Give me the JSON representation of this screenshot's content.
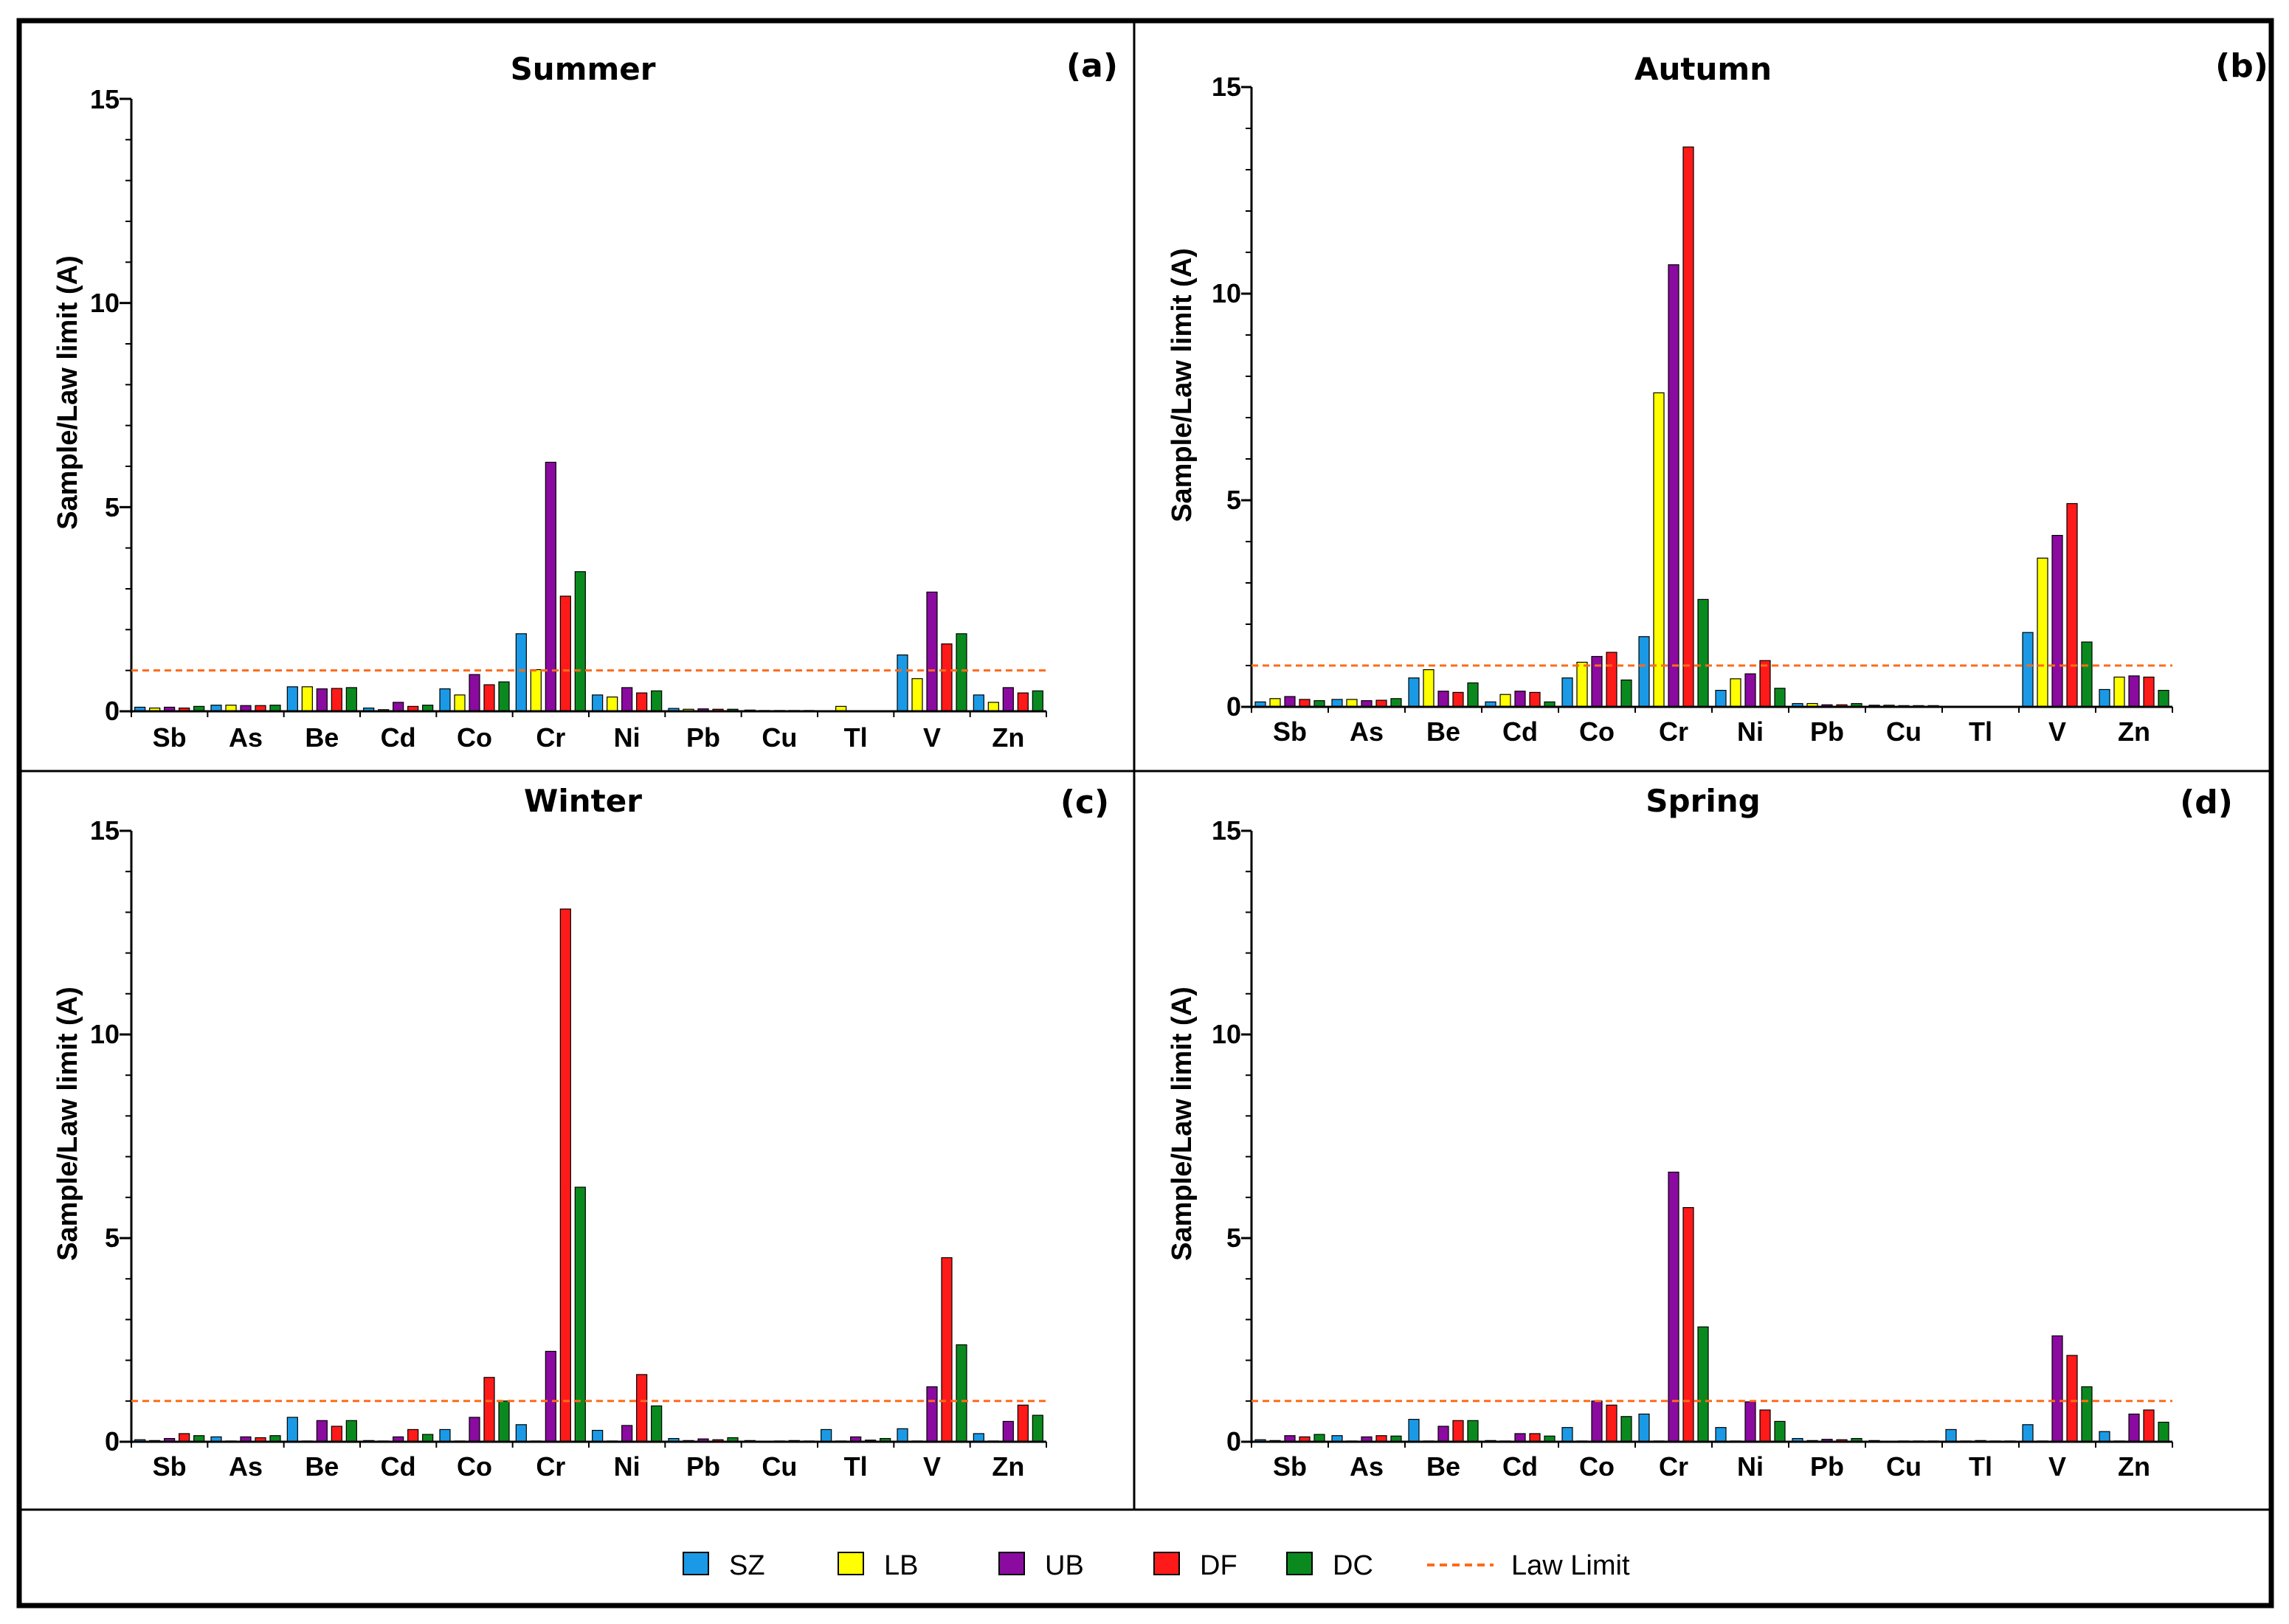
{
  "chart_data": [
    {
      "type": "bar",
      "panel": "(a)",
      "title": "Summer",
      "ylabel": "Sample/Law limit (A)",
      "ylim": [
        0,
        15
      ],
      "yticks": [
        "0",
        "5",
        "10",
        "15"
      ],
      "categories": [
        "Sb",
        "As",
        "Be",
        "Cd",
        "Co",
        "Cr",
        "Ni",
        "Pb",
        "Cu",
        "Tl",
        "V",
        "Zn"
      ],
      "law_limit": 1,
      "series": [
        {
          "name": "SZ",
          "values": [
            0.1,
            0.15,
            0.6,
            0.08,
            0.55,
            1.9,
            0.4,
            0.07,
            0.03,
            0,
            1.38,
            0.4
          ]
        },
        {
          "name": "LB",
          "values": [
            0.08,
            0.15,
            0.6,
            0.04,
            0.4,
            1.02,
            0.35,
            0.05,
            0.02,
            0.12,
            0.8,
            0.22
          ]
        },
        {
          "name": "UB",
          "values": [
            0.1,
            0.14,
            0.55,
            0.22,
            0.9,
            6.1,
            0.58,
            0.06,
            0.02,
            0,
            2.92,
            0.58
          ]
        },
        {
          "name": "DF",
          "values": [
            0.08,
            0.14,
            0.56,
            0.12,
            0.65,
            2.82,
            0.45,
            0.05,
            0.02,
            0,
            1.65,
            0.45
          ]
        },
        {
          "name": "DC",
          "values": [
            0.12,
            0.15,
            0.58,
            0.15,
            0.72,
            3.42,
            0.5,
            0.05,
            0.02,
            0,
            1.9,
            0.5
          ]
        }
      ]
    },
    {
      "type": "bar",
      "panel": "(b)",
      "title": "Autumn",
      "ylabel": "Sample/Law limit (A)",
      "ylim": [
        0,
        15
      ],
      "yticks": [
        "0",
        "5",
        "10",
        "15"
      ],
      "categories": [
        "Sb",
        "As",
        "Be",
        "Cd",
        "Co",
        "Cr",
        "Ni",
        "Pb",
        "Cu",
        "Tl",
        "V",
        "Zn"
      ],
      "law_limit": 1,
      "series": [
        {
          "name": "SZ",
          "values": [
            0.12,
            0.18,
            0.7,
            0.12,
            0.7,
            1.7,
            0.4,
            0.08,
            0.04,
            0,
            1.8,
            0.42
          ]
        },
        {
          "name": "LB",
          "values": [
            0.2,
            0.18,
            0.9,
            0.3,
            1.08,
            7.6,
            0.68,
            0.08,
            0.04,
            0,
            3.6,
            0.72
          ]
        },
        {
          "name": "UB",
          "values": [
            0.25,
            0.15,
            0.38,
            0.38,
            1.22,
            10.7,
            0.8,
            0.05,
            0.03,
            0,
            4.15,
            0.75
          ]
        },
        {
          "name": "DF",
          "values": [
            0.18,
            0.16,
            0.35,
            0.35,
            1.32,
            13.55,
            1.12,
            0.05,
            0.03,
            0,
            4.92,
            0.72
          ]
        },
        {
          "name": "DC",
          "values": [
            0.15,
            0.2,
            0.58,
            0.12,
            0.65,
            2.6,
            0.45,
            0.08,
            0.03,
            0,
            1.57,
            0.4
          ]
        }
      ]
    },
    {
      "type": "bar",
      "panel": "(c)",
      "title": "Winter",
      "ylabel": "Sample/Law limit (A)",
      "ylim": [
        0,
        15
      ],
      "yticks": [
        "0",
        "5",
        "10",
        "15"
      ],
      "categories": [
        "Sb",
        "As",
        "Be",
        "Cd",
        "Co",
        "Cr",
        "Ni",
        "Pb",
        "Cu",
        "Tl",
        "V",
        "Zn"
      ],
      "law_limit": 1,
      "series": [
        {
          "name": "SZ",
          "values": [
            0.05,
            0.12,
            0.6,
            0.03,
            0.3,
            0.42,
            0.28,
            0.08,
            0.03,
            0.3,
            0.32,
            0.2
          ]
        },
        {
          "name": "LB",
          "values": [
            0.03,
            0.02,
            0.02,
            0.02,
            0.02,
            0.02,
            0.02,
            0.03,
            0.01,
            0.02,
            0.02,
            0.02
          ]
        },
        {
          "name": "UB",
          "values": [
            0.08,
            0.12,
            0.52,
            0.12,
            0.6,
            2.22,
            0.4,
            0.07,
            0.02,
            0.12,
            1.35,
            0.5
          ]
        },
        {
          "name": "DF",
          "values": [
            0.2,
            0.1,
            0.38,
            0.3,
            1.58,
            13.08,
            1.65,
            0.05,
            0.03,
            0.04,
            4.52,
            0.9
          ]
        },
        {
          "name": "DC",
          "values": [
            0.15,
            0.15,
            0.52,
            0.18,
            1.0,
            6.25,
            0.88,
            0.1,
            0.02,
            0.08,
            2.38,
            0.65
          ]
        }
      ]
    },
    {
      "type": "bar",
      "panel": "(d)",
      "title": "Spring",
      "ylabel": "Sample/Law limit (A)",
      "ylim": [
        0,
        15
      ],
      "yticks": [
        "0",
        "5",
        "10",
        "15"
      ],
      "categories": [
        "Sb",
        "As",
        "Be",
        "Cd",
        "Co",
        "Cr",
        "Ni",
        "Pb",
        "Cu",
        "Tl",
        "V",
        "Zn"
      ],
      "law_limit": 1,
      "series": [
        {
          "name": "SZ",
          "values": [
            0.05,
            0.15,
            0.55,
            0.03,
            0.35,
            0.68,
            0.35,
            0.08,
            0.03,
            0.3,
            0.42,
            0.25
          ]
        },
        {
          "name": "LB",
          "values": [
            0.03,
            0.02,
            0.02,
            0.02,
            0.02,
            0.02,
            0.02,
            0.03,
            0.01,
            0.02,
            0.02,
            0.02
          ]
        },
        {
          "name": "UB",
          "values": [
            0.15,
            0.12,
            0.38,
            0.2,
            1.0,
            6.62,
            0.98,
            0.06,
            0.02,
            0.03,
            2.6,
            0.68
          ]
        },
        {
          "name": "DF",
          "values": [
            0.12,
            0.15,
            0.52,
            0.2,
            0.9,
            5.75,
            0.78,
            0.05,
            0.02,
            0.02,
            2.12,
            0.78
          ]
        },
        {
          "name": "DC",
          "values": [
            0.18,
            0.14,
            0.52,
            0.14,
            0.62,
            2.82,
            0.5,
            0.08,
            0.02,
            0.02,
            1.35,
            0.48
          ]
        }
      ]
    }
  ],
  "legend": {
    "items": [
      {
        "name": "SZ",
        "color": "#1a9ae6"
      },
      {
        "name": "LB",
        "color": "#ffff00"
      },
      {
        "name": "UB",
        "color": "#8b0aa0"
      },
      {
        "name": "DF",
        "color": "#ff1a1a"
      },
      {
        "name": "DC",
        "color": "#0a8a1e"
      }
    ],
    "law_limit_label": "Law Limit",
    "law_limit_color": "#ff6a1a"
  }
}
